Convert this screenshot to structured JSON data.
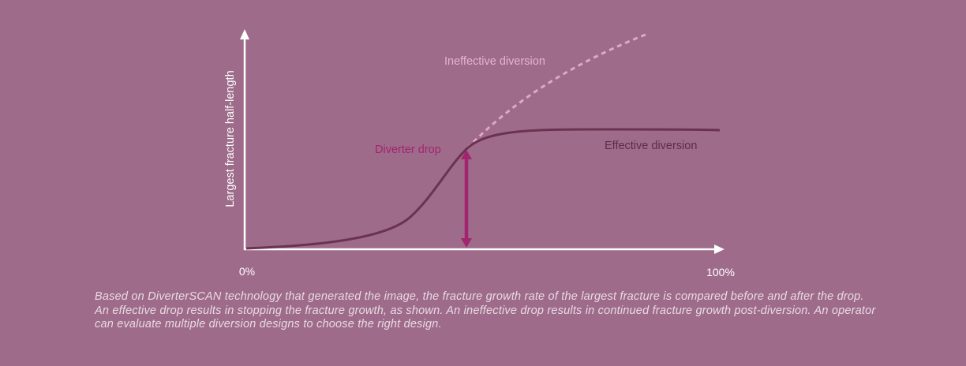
{
  "colors": {
    "background": "#9e6b8a",
    "axis": "#ffffff",
    "effective_curve": "#6b3350",
    "ineffective_curve": "#e3a6c8",
    "drop_marker": "#a3246e",
    "label_dark": "#5e2c48",
    "label_light": "#e6b3d0",
    "caption_text": "#e9dbe3"
  },
  "diagram": {
    "y_axis_label": "Largest fracture half-length",
    "x_axis_start_label": "0%",
    "x_axis_end_label": "100%",
    "labels": {
      "ineffective": "Ineffective diversion",
      "effective": "Effective diversion",
      "diverter_drop": "Diverter drop"
    }
  },
  "caption": "Based on DiverterSCAN technology that generated the image, the fracture growth rate of the largest fracture is compared before and after the drop. An effective drop results in stopping the fracture growth, as shown. An ineffective drop results in continued fracture growth post-diversion. An operator can evaluate multiple diversion designs to choose the right design."
}
